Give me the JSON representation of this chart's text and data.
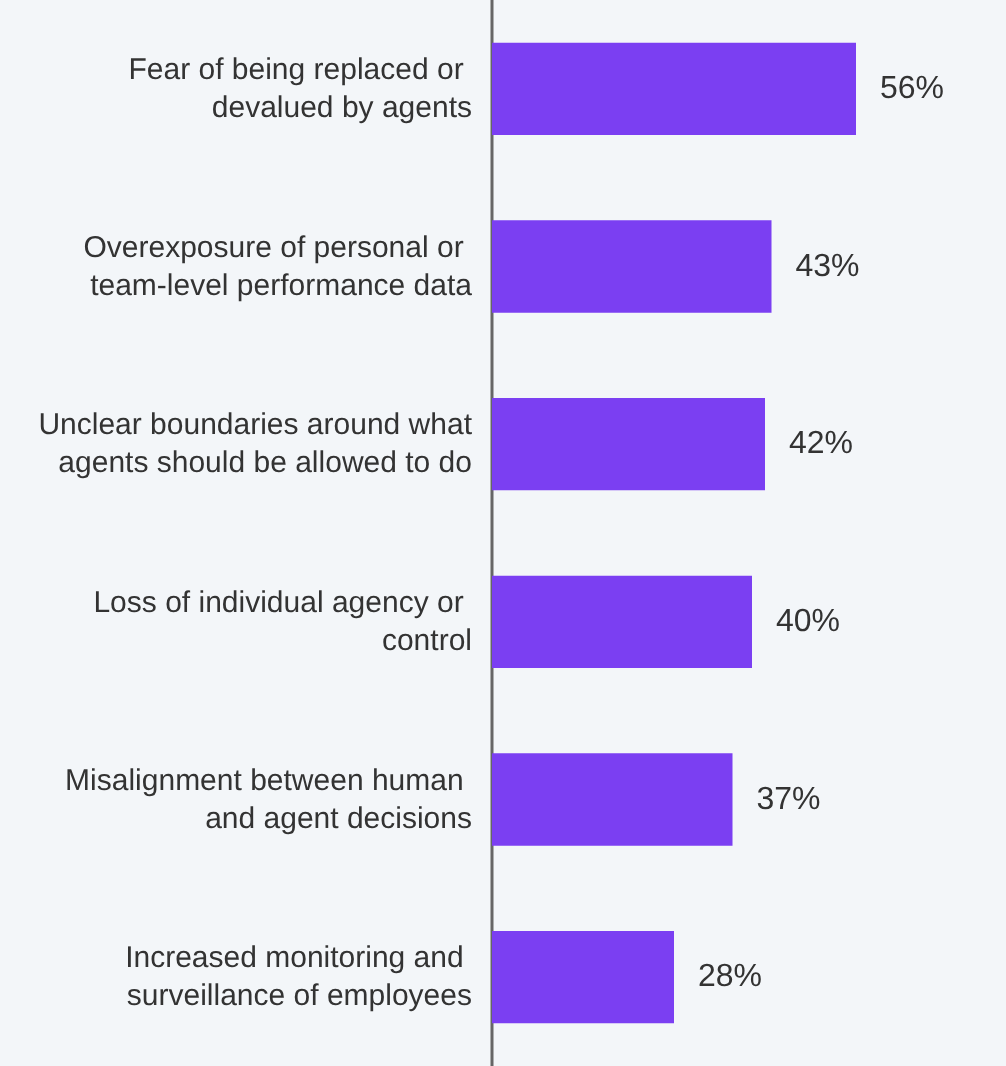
{
  "chart_data": {
    "type": "bar",
    "orientation": "horizontal",
    "categories": [
      "Fear of being replaced or devalued by agents",
      "Overexposure of personal or team-level performance data",
      "Unclear boundaries around what agents should be allowed to do",
      "Loss of individual agency or control",
      "Misalignment between human and agent decisions",
      "Increased monitoring and surveillance of employees"
    ],
    "values": [
      56,
      43,
      42,
      40,
      37,
      28
    ],
    "value_labels": [
      "56%",
      "43%",
      "42%",
      "40%",
      "37%",
      "28%"
    ],
    "color": "#7b3ff2"
  }
}
